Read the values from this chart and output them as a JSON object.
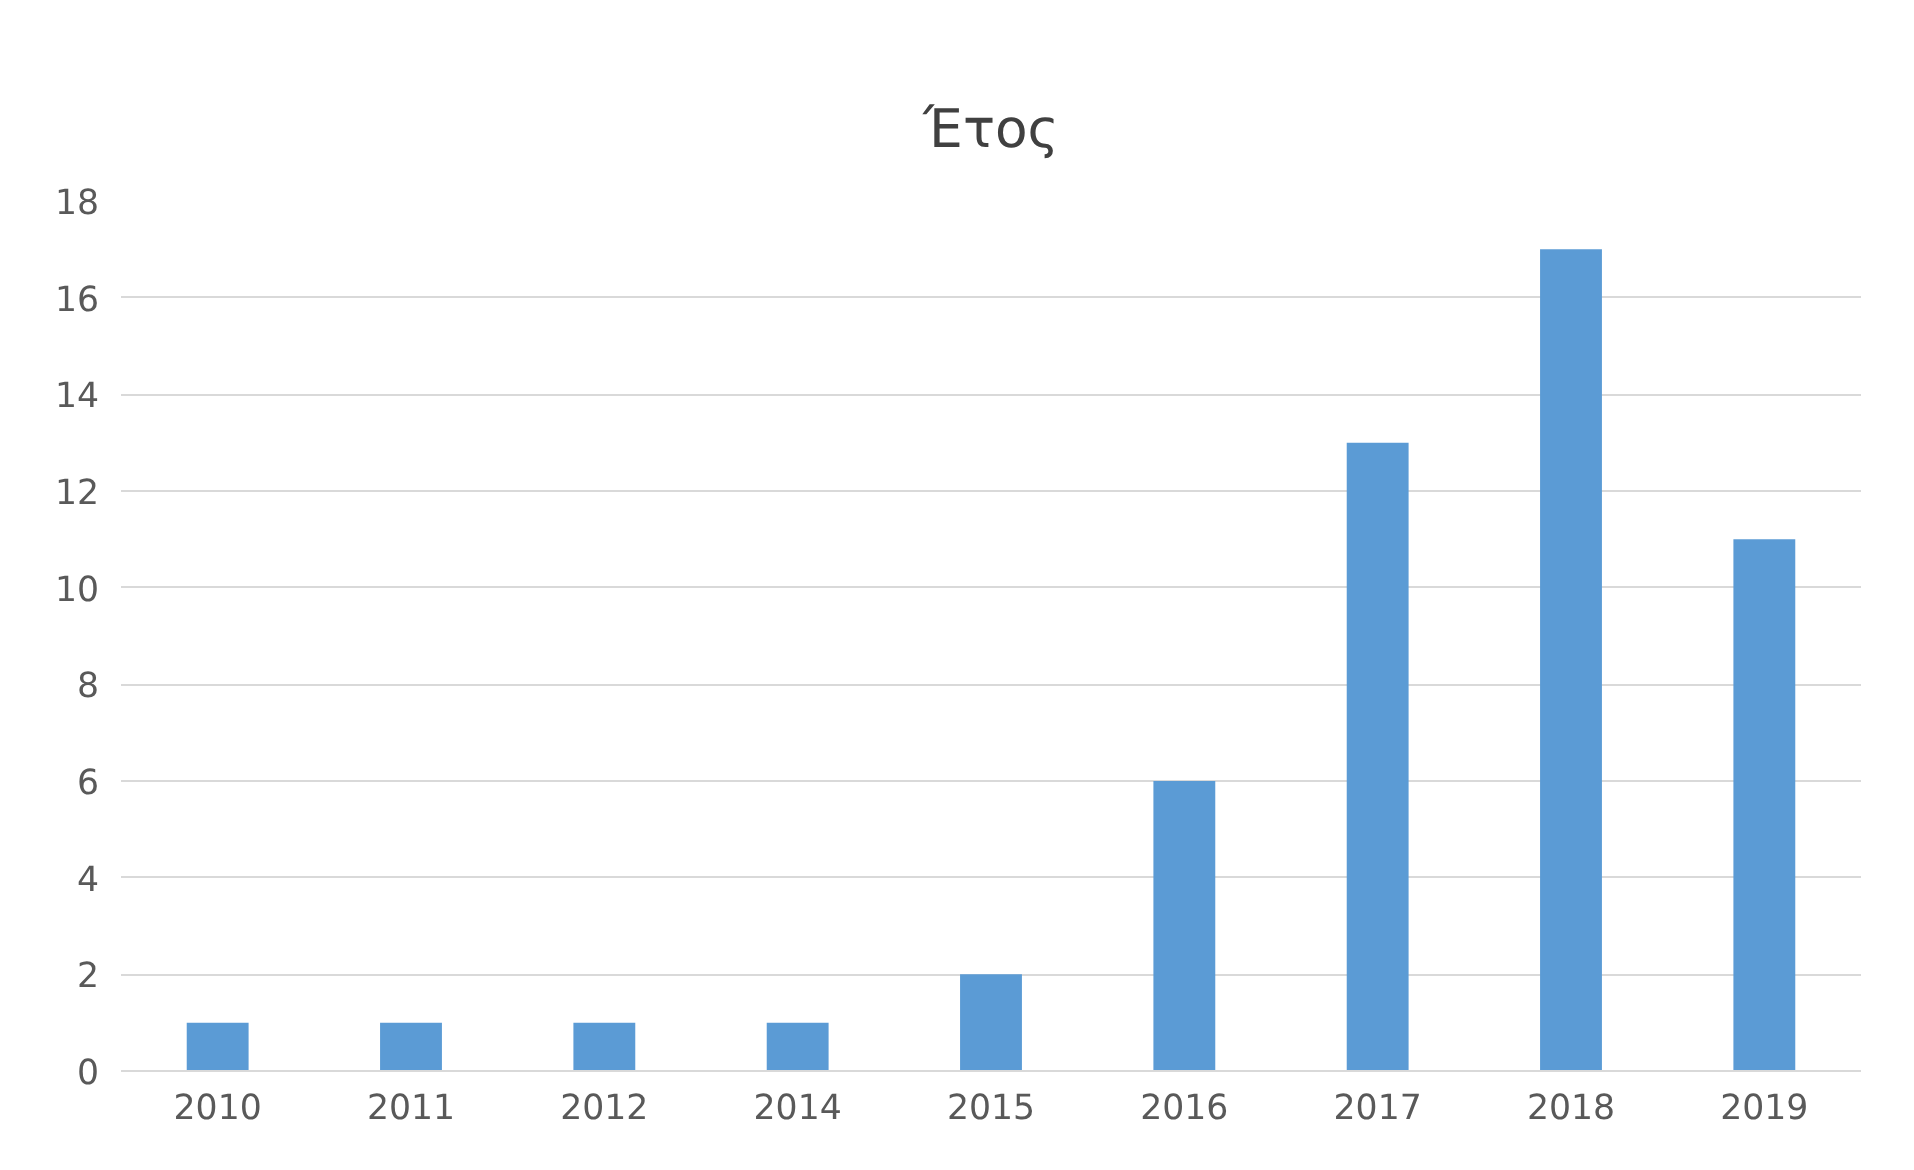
{
  "chart_data": {
    "type": "bar",
    "title": "Έτος",
    "categories": [
      "2010",
      "2011",
      "2012",
      "2014",
      "2015",
      "2016",
      "2017",
      "2018",
      "2019"
    ],
    "values": [
      1,
      1,
      1,
      1,
      2,
      6,
      13,
      17,
      11
    ],
    "color": "#5b9bd5",
    "ylim": [
      0,
      18
    ],
    "yticks": [
      0,
      2,
      4,
      6,
      8,
      10,
      12,
      14,
      16,
      18
    ],
    "grid": "y"
  }
}
